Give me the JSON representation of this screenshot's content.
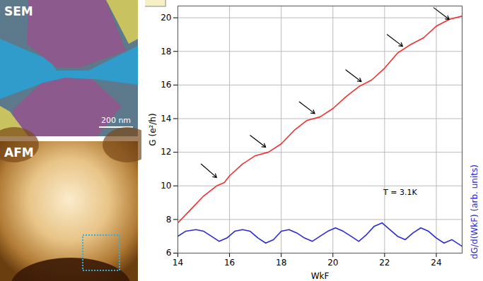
{
  "images": {
    "sem": {
      "label": "SEM",
      "scale_bar": "200 nm"
    },
    "afm": {
      "label": "AFM"
    }
  },
  "chart_data": {
    "type": "line",
    "x_label": "WkF",
    "y_label": "G (e²/h)",
    "y2_label": "dG/d(WkF) (arb. units)",
    "xlim": [
      14,
      25
    ],
    "xticks": [
      14,
      16,
      18,
      20,
      22,
      24
    ],
    "ylim": [
      6,
      20.7
    ],
    "yticks": [
      6,
      8,
      10,
      12,
      14,
      16,
      18,
      20
    ],
    "grid": true,
    "series": [
      {
        "name": "G",
        "color": "#f03030",
        "x": [
          14,
          14.5,
          15,
          15.5,
          15.8,
          16,
          16.5,
          17,
          17.5,
          18,
          18.5,
          19,
          19.5,
          20,
          20.5,
          21,
          21.5,
          22,
          22.5,
          23,
          23.5,
          24,
          24.5,
          25
        ],
        "values": [
          7.8,
          8.6,
          9.4,
          10.0,
          10.2,
          10.6,
          11.3,
          11.8,
          12.0,
          12.5,
          13.3,
          13.9,
          14.1,
          14.6,
          15.3,
          15.9,
          16.3,
          17.0,
          17.9,
          18.4,
          18.8,
          19.5,
          19.9,
          20.1
        ]
      },
      {
        "name": "dG/d(WkF)",
        "color": "#2a2ad0",
        "x": [
          14,
          14.3,
          14.7,
          15.0,
          15.3,
          15.6,
          15.9,
          16.2,
          16.5,
          16.8,
          17.1,
          17.4,
          17.7,
          18.0,
          18.3,
          18.6,
          18.9,
          19.2,
          19.5,
          19.8,
          20.1,
          20.4,
          20.7,
          21.0,
          21.3,
          21.6,
          21.9,
          22.2,
          22.5,
          22.8,
          23.1,
          23.4,
          23.7,
          24.0,
          24.3,
          24.6,
          25
        ],
        "values": [
          7.0,
          7.3,
          7.4,
          7.3,
          7.0,
          6.7,
          6.9,
          7.3,
          7.4,
          7.3,
          6.9,
          6.6,
          6.8,
          7.3,
          7.4,
          7.2,
          6.9,
          6.7,
          7.0,
          7.3,
          7.5,
          7.3,
          7.0,
          6.7,
          7.1,
          7.6,
          7.8,
          7.4,
          7.0,
          6.8,
          7.2,
          7.5,
          7.3,
          6.9,
          6.6,
          6.8,
          6.4
        ]
      }
    ],
    "arrows": [
      {
        "x1": 14.9,
        "y1": 11.3,
        "x2": 15.5,
        "y2": 10.5
      },
      {
        "x1": 16.8,
        "y1": 13.0,
        "x2": 17.4,
        "y2": 12.3
      },
      {
        "x1": 18.7,
        "y1": 15.0,
        "x2": 19.3,
        "y2": 14.3
      },
      {
        "x1": 20.5,
        "y1": 16.9,
        "x2": 21.1,
        "y2": 16.2
      },
      {
        "x1": 22.1,
        "y1": 19.0,
        "x2": 22.7,
        "y2": 18.3
      },
      {
        "x1": 23.9,
        "y1": 20.6,
        "x2": 24.5,
        "y2": 19.9
      }
    ],
    "annotations": [
      {
        "text": "T = 3.1K",
        "x": 22.6,
        "y": 9.6
      }
    ]
  }
}
